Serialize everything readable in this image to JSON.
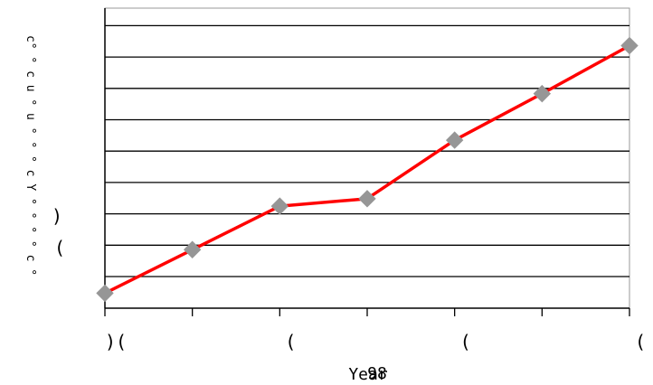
{
  "chart_data": {
    "type": "line",
    "title": "",
    "xlabel": "Year",
    "xlabel_overlay": "98",
    "ylabel": "c° ° c u  ° u ° ° °  c Y  ° ° ° ° c °",
    "x": [
      0,
      1,
      2,
      3,
      4,
      5,
      6
    ],
    "x_tick_labels": [
      ")(",
      "",
      "(",
      "",
      "(",
      "",
      "("
    ],
    "y_side_marks": [
      ")",
      "("
    ],
    "ylim": [
      0,
      10
    ],
    "grid": true,
    "series": [
      {
        "values": [
          0.5,
          1.95,
          3.4,
          3.65,
          5.6,
          7.15,
          8.75
        ],
        "color": "#ff0000",
        "marker": "diamond",
        "marker_color": "#969696"
      }
    ]
  }
}
